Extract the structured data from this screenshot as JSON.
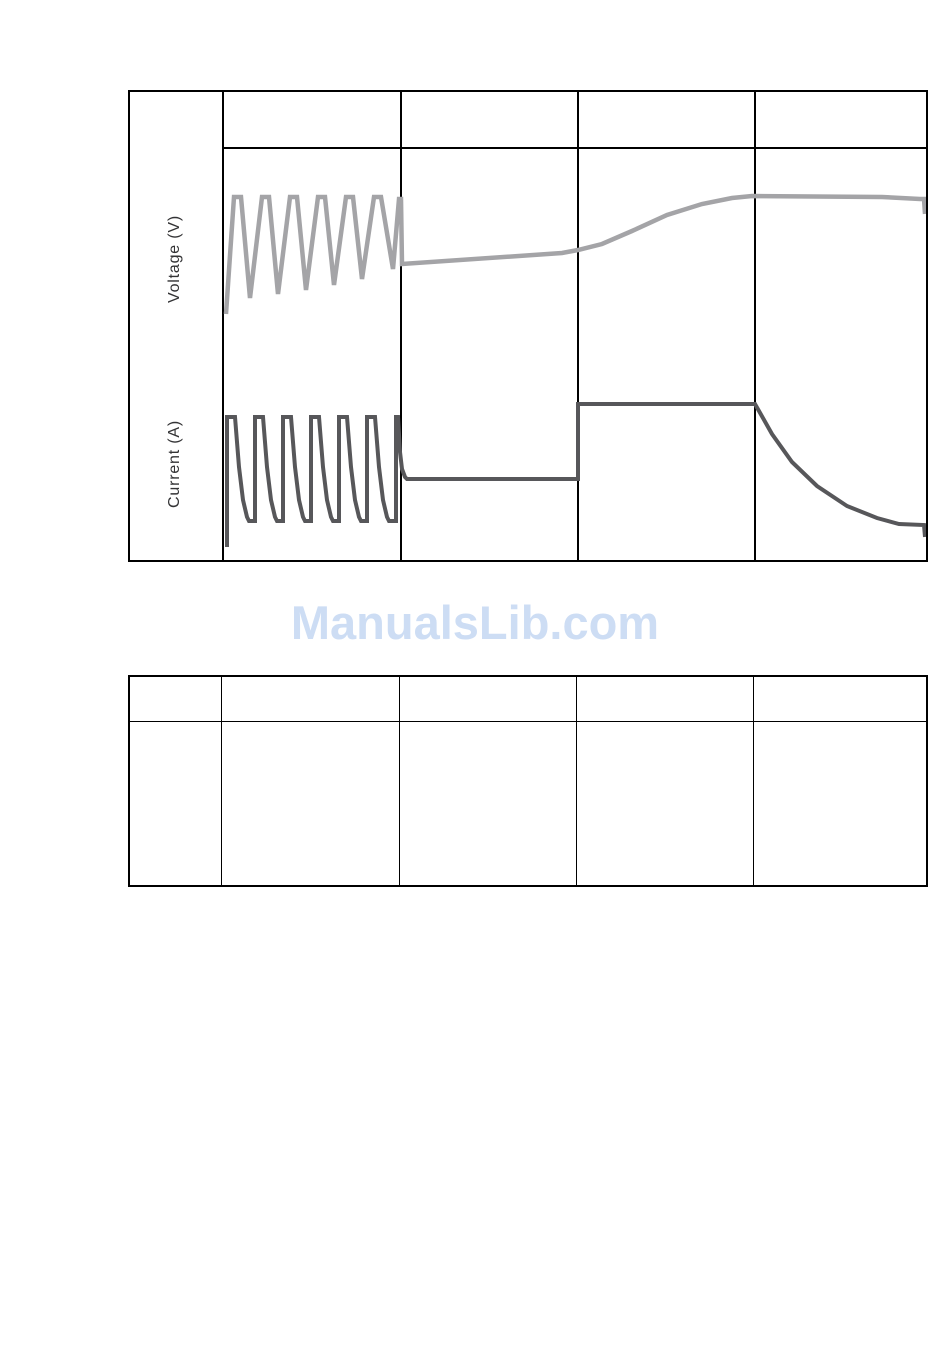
{
  "watermark": {
    "text": "ManualsLib.com",
    "color": "#cdddf4"
  },
  "chart_data": {
    "type": "line",
    "title": "",
    "description": "Charger output waveforms over four unlabeled charging phases; no numeric axis ticks shown",
    "xlabel": "",
    "ylabel": "",
    "row_labels": [
      "Voltage (V)",
      "Current (A)"
    ],
    "phase_headers": [
      "",
      "",
      "",
      ""
    ],
    "grid": "four phase columns with empty header band",
    "legend_position": "none",
    "phases": [
      {
        "header": "",
        "voltage": "sawtooth oscillation: 7 ramps between low and peak, troughs rising slowly",
        "current": "7 pulse spikes: sharp rise to max, brief flat top, exponential decay to low base"
      },
      {
        "header": "",
        "voltage": "slow nearly-linear rise at mid level",
        "current": "constant medium-low level"
      },
      {
        "header": "",
        "voltage": "smooth s-curve rise up to maximum plateau",
        "current": "step up to constant high level"
      },
      {
        "header": "",
        "voltage": "flat at maximum, small drop tick at the very end",
        "current": "exponential decay to minimum, small drop tick at the very end"
      }
    ],
    "series": [
      {
        "name": "Voltage (V)",
        "color": "#a4a4a7",
        "stroke_width": 4.5,
        "data_name": "voltage-trace",
        "points": [
          [
            96,
            222
          ],
          [
            104,
            105
          ],
          [
            111,
            105
          ],
          [
            120,
            206
          ],
          [
            132,
            105
          ],
          [
            139,
            105
          ],
          [
            148,
            202
          ],
          [
            160,
            105
          ],
          [
            167,
            105
          ],
          [
            176,
            198
          ],
          [
            188,
            105
          ],
          [
            195,
            105
          ],
          [
            204,
            193
          ],
          [
            216,
            105
          ],
          [
            223,
            105
          ],
          [
            232,
            187
          ],
          [
            244,
            105
          ],
          [
            251,
            105
          ],
          [
            263,
            177
          ],
          [
            269,
            107
          ],
          [
            271,
            107
          ],
          [
            272,
            172
          ],
          [
            432,
            161
          ],
          [
            448,
            158
          ],
          [
            472,
            152
          ],
          [
            502,
            139
          ],
          [
            537,
            123
          ],
          [
            572,
            112
          ],
          [
            602,
            106
          ],
          [
            622,
            104
          ],
          [
            752,
            105
          ],
          [
            790,
            107
          ],
          [
            794,
            107
          ],
          [
            795,
            122
          ]
        ]
      },
      {
        "name": "Current (A)",
        "color": "#57575a",
        "stroke_width": 4,
        "data_name": "current-trace",
        "points": [
          [
            97,
            455
          ],
          [
            97,
            325
          ],
          [
            105,
            325
          ],
          [
            109,
            375
          ],
          [
            113,
            408
          ],
          [
            117,
            425
          ],
          [
            119,
            429
          ],
          [
            125,
            429
          ],
          [
            125,
            325
          ],
          [
            133,
            325
          ],
          [
            137,
            375
          ],
          [
            141,
            408
          ],
          [
            145,
            425
          ],
          [
            147,
            429
          ],
          [
            153,
            429
          ],
          [
            153,
            325
          ],
          [
            161,
            325
          ],
          [
            165,
            375
          ],
          [
            169,
            408
          ],
          [
            173,
            425
          ],
          [
            175,
            429
          ],
          [
            181,
            429
          ],
          [
            181,
            325
          ],
          [
            189,
            325
          ],
          [
            193,
            375
          ],
          [
            197,
            408
          ],
          [
            201,
            425
          ],
          [
            203,
            429
          ],
          [
            209,
            429
          ],
          [
            209,
            325
          ],
          [
            217,
            325
          ],
          [
            221,
            375
          ],
          [
            225,
            408
          ],
          [
            229,
            425
          ],
          [
            231,
            429
          ],
          [
            237,
            429
          ],
          [
            237,
            325
          ],
          [
            245,
            325
          ],
          [
            249,
            375
          ],
          [
            253,
            408
          ],
          [
            257,
            425
          ],
          [
            259,
            429
          ],
          [
            265,
            429
          ],
          [
            266,
            429
          ],
          [
            266,
            325
          ],
          [
            268,
            325
          ],
          [
            270,
            360
          ],
          [
            272,
            377
          ],
          [
            275,
            385
          ],
          [
            277,
            387
          ],
          [
            448,
            387
          ],
          [
            448,
            312
          ],
          [
            625,
            312
          ],
          [
            642,
            342
          ],
          [
            662,
            370
          ],
          [
            687,
            394
          ],
          [
            717,
            414
          ],
          [
            747,
            426
          ],
          [
            769,
            432
          ],
          [
            794,
            433
          ],
          [
            795,
            445
          ]
        ]
      }
    ]
  },
  "bottom_table": {
    "header": [
      "",
      "",
      "",
      "",
      ""
    ],
    "body": [
      [
        "",
        "",
        "",
        "",
        ""
      ]
    ]
  }
}
